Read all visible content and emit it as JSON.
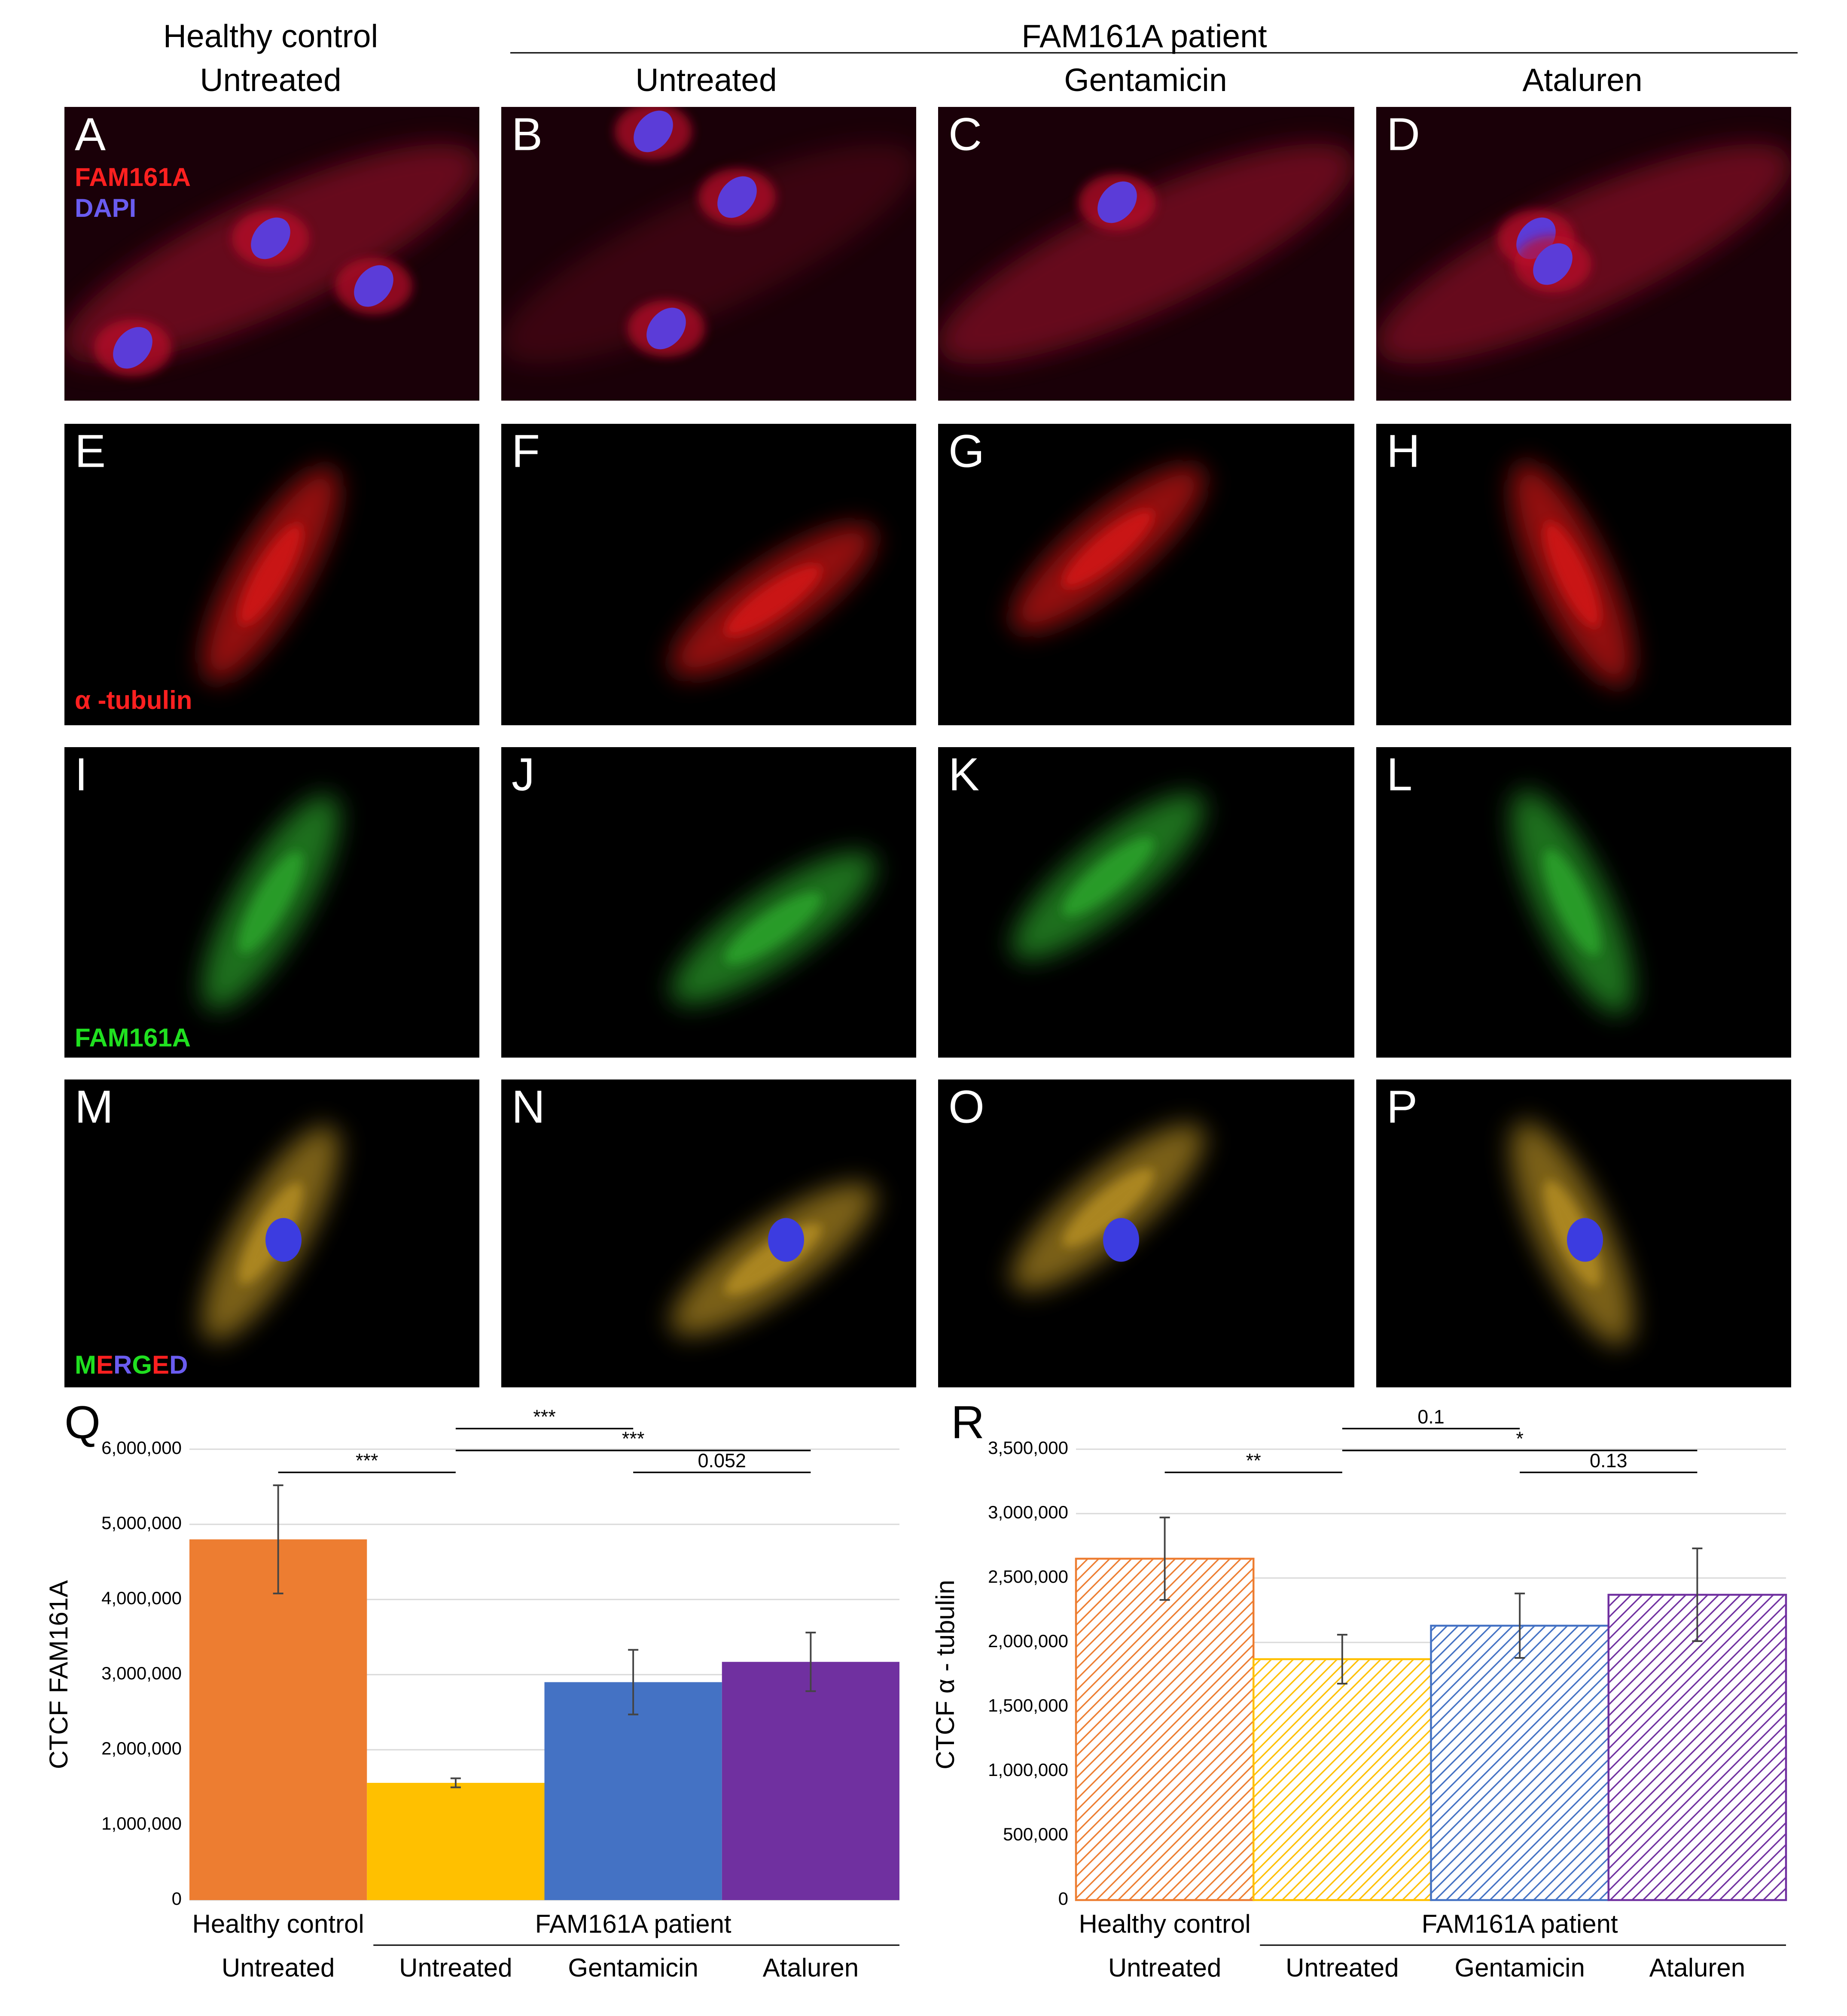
{
  "header": {
    "control_group": "Healthy control",
    "control_condition": "Untreated",
    "patient_group": "FAM161A patient",
    "conditions": [
      "Untreated",
      "Gentamicin",
      "Ataluren"
    ]
  },
  "panels": [
    "A",
    "B",
    "C",
    "D",
    "E",
    "F",
    "G",
    "H",
    "I",
    "J",
    "K",
    "L",
    "M",
    "N",
    "O",
    "P"
  ],
  "stains": {
    "fam161a_red": "FAM161A",
    "dapi": "DAPI",
    "tubulin": "α -tubulin",
    "fam161a_green": "FAM161A",
    "merged": "MERGED"
  },
  "chart_data": [
    {
      "type": "bar",
      "panel": "Q",
      "ylabel": "CTCF FAM161A",
      "groups": [
        "Healthy control",
        "FAM161A patient"
      ],
      "categories": [
        "Untreated",
        "Untreated",
        "Gentamicin",
        "Ataluren"
      ],
      "values": [
        4800000,
        1560000,
        2900000,
        3170000
      ],
      "errors": [
        720000,
        60000,
        430000,
        390000
      ],
      "colors": [
        "#ed7d31",
        "#ffc000",
        "#4472c4",
        "#7030a0"
      ],
      "hatched": false,
      "ylim": [
        0,
        6000000
      ],
      "yticks": [
        0,
        {
          "value": 1000000,
          "label": "1,000,000"
        },
        {
          "value": 2000000,
          "label": "2,000,000"
        },
        {
          "value": 3000000,
          "label": "3,000,000"
        },
        {
          "value": 4000000,
          "label": "4,000,000"
        },
        {
          "value": 5000000,
          "label": "5,000,000"
        },
        {
          "value": 6000000,
          "label": "6,000,000"
        }
      ],
      "grid": true,
      "annotations": [
        "***",
        "***",
        "***",
        "0.052"
      ]
    },
    {
      "type": "bar",
      "panel": "R",
      "ylabel": "CTCF α - tubulin",
      "groups": [
        "Healthy control",
        "FAM161A patient"
      ],
      "categories": [
        "Untreated",
        "Untreated",
        "Gentamicin",
        "Ataluren"
      ],
      "values": [
        2650000,
        1870000,
        2130000,
        2370000
      ],
      "errors": [
        320000,
        190000,
        250000,
        360000
      ],
      "colors": [
        "#ed7d31",
        "#ffc000",
        "#4472c4",
        "#7030a0"
      ],
      "hatched": true,
      "ylim": [
        0,
        3500000
      ],
      "yticks": [
        0,
        {
          "value": 500000,
          "label": "500,000"
        },
        {
          "value": 1000000,
          "label": "1,000,000"
        },
        {
          "value": 1500000,
          "label": "1,500,000"
        },
        {
          "value": 2000000,
          "label": "2,000,000"
        },
        {
          "value": 2500000,
          "label": "2,500,000"
        },
        {
          "value": 3000000,
          "label": "3,000,000"
        },
        {
          "value": 3500000,
          "label": "3,500,000"
        }
      ],
      "grid": true,
      "annotations": [
        "**",
        "0.1",
        "*",
        "0.13"
      ]
    }
  ]
}
